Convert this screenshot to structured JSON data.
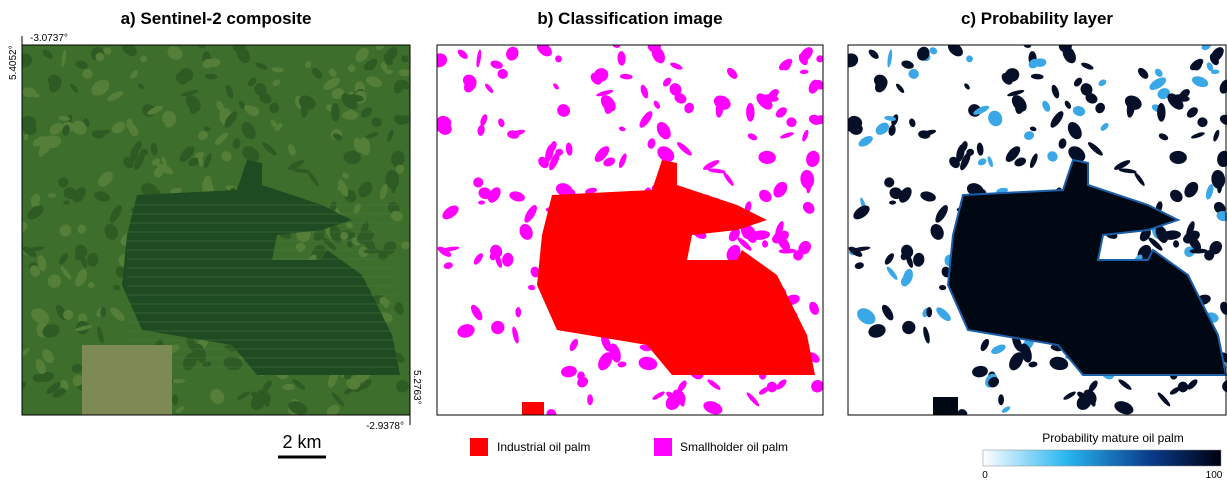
{
  "panels": [
    {
      "title": "a)  Sentinel-2 composite",
      "coords": {
        "top_left_lon": "-3.0737°",
        "top_left_lat": "5.4052°",
        "bottom_right_lat": "5.2763°",
        "bottom_right_lon": "-2.9378°"
      },
      "scale_bar": "2 km"
    },
    {
      "title": "b)  Classification image",
      "legend": [
        "Industrial oil palm",
        "Smallholder oil palm"
      ]
    },
    {
      "title": "c)  Probability layer",
      "colorbar": {
        "title": "Probability mature oil palm",
        "ticks": [
          0,
          100
        ]
      }
    }
  ]
}
